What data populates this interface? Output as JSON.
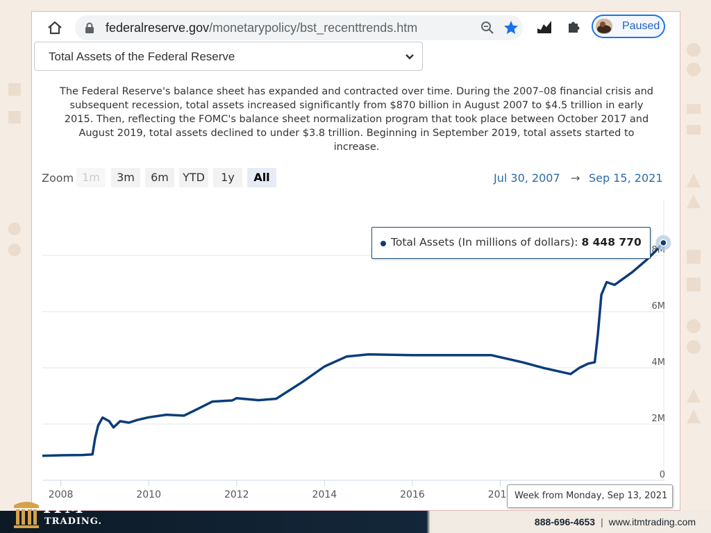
{
  "browser": {
    "url_host": "federalreserve.gov",
    "url_path": "/monetarypolicy/bst_recenttrends.htm",
    "profile_label": "Paused",
    "icons": [
      "home-icon",
      "lock-icon",
      "zoom-icon",
      "star-icon",
      "extension-icon",
      "puzzle-icon"
    ]
  },
  "page": {
    "select_value": "Total Assets of the Federal Reserve",
    "description": "The Federal Reserve's balance sheet has expanded and contracted over time. During the 2007–08 financial crisis and subsequent recession, total assets increased significantly from $870 billion in August 2007 to $4.5 trillion in early 2015. Then, reflecting the FOMC's balance sheet normalization program that took place between October 2017 and August 2019, total assets declined to under $3.8 trillion. Beginning in September 2019, total assets started to increase.",
    "zoom_label": "Zoom",
    "zoom_buttons": [
      "1m",
      "3m",
      "6m",
      "YTD",
      "1y",
      "All"
    ],
    "zoom_active": "All",
    "range_from": "Jul 30, 2007",
    "range_arrow": "→",
    "range_to": "Sep 15, 2021"
  },
  "tooltip": {
    "label": "Total Assets (In millions of dollars):",
    "value": "8 448 770"
  },
  "week_label": "Week from Monday, Sep 13, 2021",
  "chart_data": {
    "type": "line",
    "x_ticks": [
      "2008",
      "2010",
      "2012",
      "2014",
      "2016",
      "2018"
    ],
    "y_ticks": [
      "0",
      "2M",
      "4M",
      "6M",
      "8M"
    ],
    "ylim": [
      0,
      10000000
    ],
    "xlim": [
      2007.58,
      2021.72
    ],
    "series": [
      {
        "name": "Total Assets (In millions of dollars)",
        "color": "#0b3d78",
        "points": [
          [
            2007.58,
            870000
          ],
          [
            2008.0,
            890000
          ],
          [
            2008.5,
            900000
          ],
          [
            2008.72,
            920000
          ],
          [
            2008.78,
            1500000
          ],
          [
            2008.85,
            1950000
          ],
          [
            2008.95,
            2230000
          ],
          [
            2009.1,
            2100000
          ],
          [
            2009.2,
            1880000
          ],
          [
            2009.35,
            2100000
          ],
          [
            2009.55,
            2050000
          ],
          [
            2009.75,
            2150000
          ],
          [
            2010.0,
            2240000
          ],
          [
            2010.4,
            2330000
          ],
          [
            2010.8,
            2300000
          ],
          [
            2011.0,
            2450000
          ],
          [
            2011.45,
            2800000
          ],
          [
            2011.9,
            2840000
          ],
          [
            2012.0,
            2920000
          ],
          [
            2012.5,
            2850000
          ],
          [
            2012.9,
            2900000
          ],
          [
            2013.5,
            3500000
          ],
          [
            2014.0,
            4050000
          ],
          [
            2014.5,
            4400000
          ],
          [
            2015.0,
            4480000
          ],
          [
            2016.0,
            4450000
          ],
          [
            2017.0,
            4450000
          ],
          [
            2017.8,
            4450000
          ],
          [
            2018.5,
            4200000
          ],
          [
            2019.0,
            3990000
          ],
          [
            2019.6,
            3780000
          ],
          [
            2019.8,
            4000000
          ],
          [
            2020.0,
            4150000
          ],
          [
            2020.15,
            4200000
          ],
          [
            2020.22,
            5200000
          ],
          [
            2020.3,
            6600000
          ],
          [
            2020.42,
            7050000
          ],
          [
            2020.6,
            6950000
          ],
          [
            2021.0,
            7400000
          ],
          [
            2021.3,
            7800000
          ],
          [
            2021.5,
            8100000
          ],
          [
            2021.71,
            8448770
          ]
        ]
      }
    ]
  },
  "footer": {
    "logo_text": "ITM",
    "logo_sub": "TRADING.",
    "phone": "888-696-4653",
    "separator": "|",
    "website": "www.itmtrading.com"
  }
}
